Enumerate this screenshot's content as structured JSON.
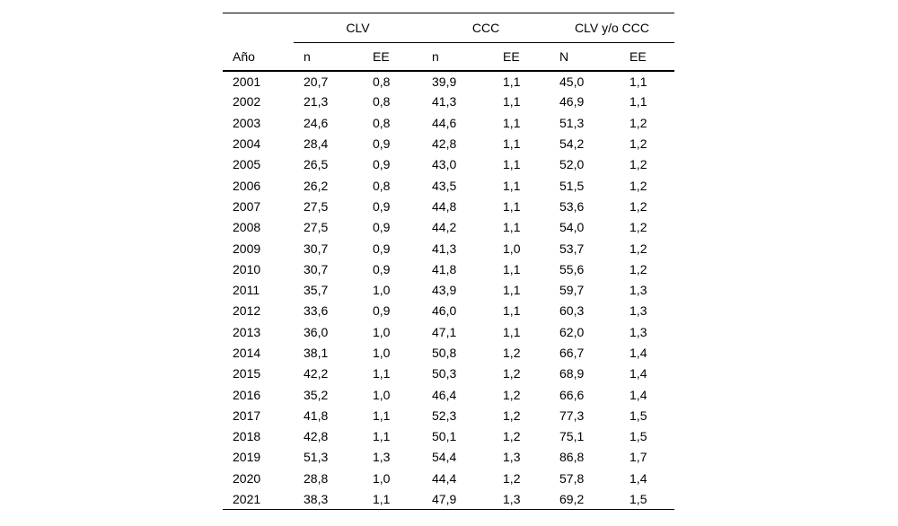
{
  "chart_data": {
    "type": "table",
    "group_headers": [
      {
        "label": "CLV",
        "span": 2
      },
      {
        "label": "CCC",
        "span": 2
      },
      {
        "label": "CLV y/o CCC",
        "span": 2
      }
    ],
    "columns": [
      "Año",
      "n",
      "EE",
      "n",
      "EE",
      "N",
      "EE"
    ],
    "rows": [
      [
        "2001",
        "20,7",
        "0,8",
        "39,9",
        "1,1",
        "45,0",
        "1,1"
      ],
      [
        "2002",
        "21,3",
        "0,8",
        "41,3",
        "1,1",
        "46,9",
        "1,1"
      ],
      [
        "2003",
        "24,6",
        "0,8",
        "44,6",
        "1,1",
        "51,3",
        "1,2"
      ],
      [
        "2004",
        "28,4",
        "0,9",
        "42,8",
        "1,1",
        "54,2",
        "1,2"
      ],
      [
        "2005",
        "26,5",
        "0,9",
        "43,0",
        "1,1",
        "52,0",
        "1,2"
      ],
      [
        "2006",
        "26,2",
        "0,8",
        "43,5",
        "1,1",
        "51,5",
        "1,2"
      ],
      [
        "2007",
        "27,5",
        "0,9",
        "44,8",
        "1,1",
        "53,6",
        "1,2"
      ],
      [
        "2008",
        "27,5",
        "0,9",
        "44,2",
        "1,1",
        "54,0",
        "1,2"
      ],
      [
        "2009",
        "30,7",
        "0,9",
        "41,3",
        "1,0",
        "53,7",
        "1,2"
      ],
      [
        "2010",
        "30,7",
        "0,9",
        "41,8",
        "1,1",
        "55,6",
        "1,2"
      ],
      [
        "2011",
        "35,7",
        "1,0",
        "43,9",
        "1,1",
        "59,7",
        "1,3"
      ],
      [
        "2012",
        "33,6",
        "0,9",
        "46,0",
        "1,1",
        "60,3",
        "1,3"
      ],
      [
        "2013",
        "36,0",
        "1,0",
        "47,1",
        "1,1",
        "62,0",
        "1,3"
      ],
      [
        "2014",
        "38,1",
        "1,0",
        "50,8",
        "1,2",
        "66,7",
        "1,4"
      ],
      [
        "2015",
        "42,2",
        "1,1",
        "50,3",
        "1,2",
        "68,9",
        "1,4"
      ],
      [
        "2016",
        "35,2",
        "1,0",
        "46,4",
        "1,2",
        "66,6",
        "1,4"
      ],
      [
        "2017",
        "41,8",
        "1,1",
        "52,3",
        "1,2",
        "77,3",
        "1,5"
      ],
      [
        "2018",
        "42,8",
        "1,1",
        "50,1",
        "1,2",
        "75,1",
        "1,5"
      ],
      [
        "2019",
        "51,3",
        "1,3",
        "54,4",
        "1,3",
        "86,8",
        "1,7"
      ],
      [
        "2020",
        "28,8",
        "1,0",
        "44,4",
        "1,2",
        "57,8",
        "1,4"
      ],
      [
        "2021",
        "38,3",
        "1,1",
        "47,9",
        "1,3",
        "69,2",
        "1,5"
      ]
    ],
    "layout": {
      "text_color": "#000000",
      "background_color": "#ffffff",
      "rule_color": "#000000",
      "grid": "horizontal-rules-only"
    }
  }
}
